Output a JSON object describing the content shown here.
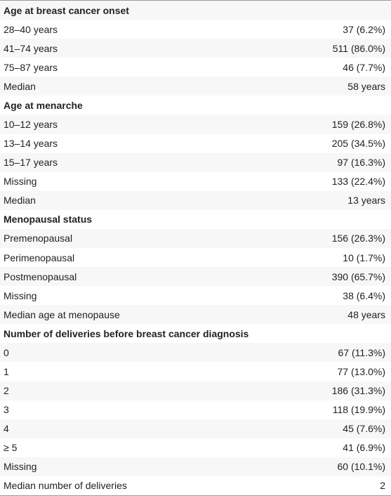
{
  "table": {
    "sections": [
      {
        "title": "Age at breast cancer onset",
        "rows": [
          [
            "28–40 years",
            "37 (6.2%)"
          ],
          [
            "41–74 years",
            "511 (86.0%)"
          ],
          [
            "75–87 years",
            "46 (7.7%)"
          ],
          [
            "Median",
            "58 years"
          ]
        ]
      },
      {
        "title": "Age at menarche",
        "rows": [
          [
            "10–12 years",
            "159 (26.8%)"
          ],
          [
            "13–14 years",
            "205 (34.5%)"
          ],
          [
            "15–17 years",
            "97 (16.3%)"
          ],
          [
            "Missing",
            "133 (22.4%)"
          ],
          [
            "Median",
            "13 years"
          ]
        ]
      },
      {
        "title": "Menopausal status",
        "rows": [
          [
            "Premenopausal",
            "156 (26.3%)"
          ],
          [
            "Perimenopausal",
            "10 (1.7%)"
          ],
          [
            "Postmenopausal",
            "390 (65.7%)"
          ],
          [
            "Missing",
            "38 (6.4%)"
          ],
          [
            "Median age at menopause",
            "48 years"
          ]
        ]
      },
      {
        "title": "Number of deliveries before breast cancer diagnosis",
        "rows": [
          [
            "0",
            "67 (11.3%)"
          ],
          [
            "1",
            "77 (13.0%)"
          ],
          [
            "2",
            "186 (31.3%)"
          ],
          [
            "3",
            "118 (19.9%)"
          ],
          [
            "4",
            "45 (7.6%)"
          ],
          [
            "≥ 5",
            "41 (6.9%)"
          ],
          [
            "Missing",
            "60 (10.1%)"
          ],
          [
            "Median number of deliveries",
            "2"
          ]
        ]
      }
    ]
  }
}
